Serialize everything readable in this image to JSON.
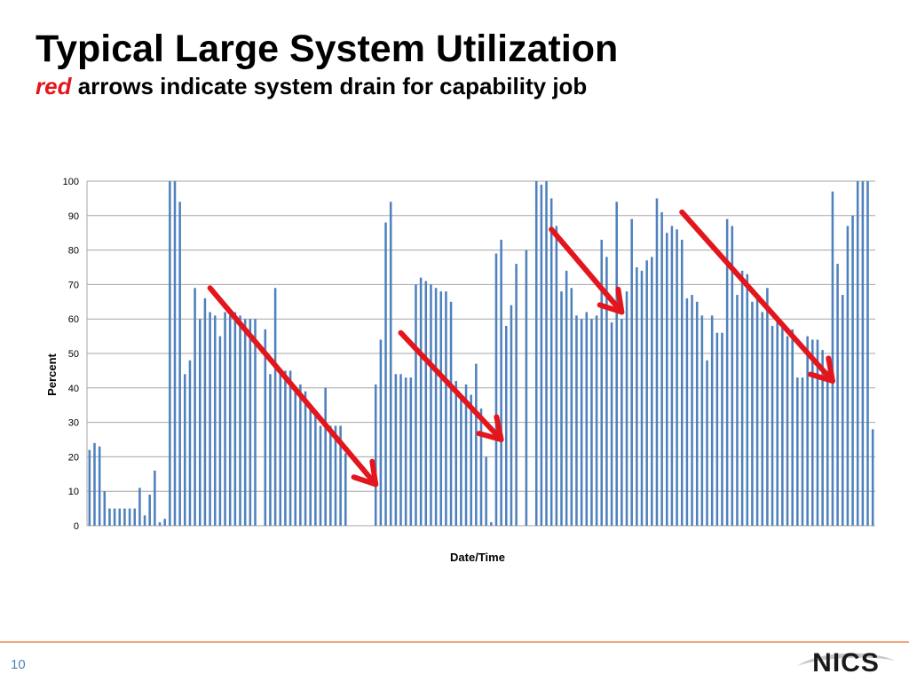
{
  "slide": {
    "title": "Typical Large System Utilization",
    "subtitle_accent": "red",
    "subtitle_rest": " arrows indicate system drain for capability job",
    "page_number": "10",
    "logo_text": "NICS"
  },
  "colors": {
    "bar": "#4f81bd",
    "arrow": "#e3161d",
    "accent_text": "#e3161d",
    "footer_line": "#f4a57a",
    "page_number": "#4f81bd",
    "grid": "#a6a6a6",
    "logo_swoosh": "#c8c8c8"
  },
  "chart_data": {
    "type": "bar",
    "xlabel": "Date/Time",
    "ylabel": "Percent",
    "ylim": [
      0,
      100
    ],
    "yticks": [
      0,
      10,
      20,
      30,
      40,
      50,
      60,
      70,
      80,
      90,
      100
    ],
    "grid": true,
    "categories_labeled": false,
    "values": [
      22,
      24,
      23,
      10,
      5,
      5,
      5,
      5,
      5,
      5,
      11,
      3,
      9,
      16,
      1,
      2,
      100,
      100,
      94,
      44,
      48,
      69,
      60,
      66,
      62,
      61,
      55,
      62,
      61,
      62,
      61,
      60,
      60,
      60,
      0,
      57,
      44,
      69,
      45,
      45,
      45,
      40,
      41,
      39,
      35,
      33,
      29,
      40,
      29,
      29,
      29,
      21,
      0,
      0,
      0,
      0,
      0,
      41,
      54,
      88,
      94,
      44,
      44,
      43,
      43,
      70,
      72,
      71,
      70,
      69,
      68,
      68,
      65,
      42,
      38,
      41,
      38,
      47,
      34,
      20,
      1,
      79,
      83,
      58,
      64,
      76,
      0,
      80,
      0,
      100,
      99,
      100,
      95,
      87,
      68,
      74,
      69,
      61,
      60,
      62,
      60,
      61,
      83,
      78,
      59,
      94,
      60,
      68,
      89,
      75,
      74,
      77,
      78,
      95,
      91,
      85,
      87,
      86,
      83,
      66,
      67,
      65,
      61,
      48,
      61,
      56,
      56,
      89,
      87,
      67,
      74,
      73,
      65,
      67,
      62,
      69,
      58,
      60,
      59,
      55,
      57,
      43,
      43,
      55,
      54,
      54,
      51,
      45,
      97,
      76,
      67,
      87,
      90,
      100,
      100,
      100,
      28
    ],
    "annotations": [
      {
        "type": "arrow",
        "from": [
          24,
          69
        ],
        "to": [
          57,
          12
        ]
      },
      {
        "type": "arrow",
        "from": [
          62,
          56
        ],
        "to": [
          82,
          25
        ]
      },
      {
        "type": "arrow",
        "from": [
          92,
          86
        ],
        "to": [
          106,
          62
        ]
      },
      {
        "type": "arrow",
        "from": [
          118,
          91
        ],
        "to": [
          148,
          42
        ]
      }
    ]
  }
}
